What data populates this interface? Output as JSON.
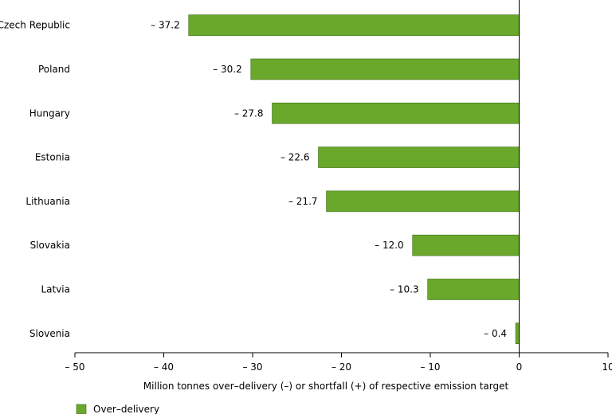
{
  "chart_data": {
    "type": "bar",
    "orientation": "horizontal",
    "categories": [
      "Czech Republic",
      "Poland",
      "Hungary",
      "Estonia",
      "Lithuania",
      "Slovakia",
      "Latvia",
      "Slovenia"
    ],
    "series": [
      {
        "name": "Over–delivery",
        "values": [
          -37.2,
          -30.2,
          -27.8,
          -22.6,
          -21.7,
          -12.0,
          -10.3,
          -0.4
        ],
        "labels": [
          "– 37.2",
          "– 30.2",
          "– 27.8",
          "– 22.6",
          "– 21.7",
          "– 12.0",
          "– 10.3",
          "– 0.4"
        ],
        "color": "#6aa82c"
      }
    ],
    "xlabel": "Million tonnes over–delivery (–) or shortfall (+) of respective emission target",
    "xlim": [
      -50,
      10
    ],
    "xticks": [
      -50,
      -40,
      -30,
      -20,
      -10,
      0,
      10
    ],
    "xtick_labels": [
      "– 50",
      "– 40",
      "– 30",
      "– 20",
      "– 10",
      "0",
      "10"
    ],
    "grid": false,
    "legend_position": "bottom-left",
    "colors": {
      "bar": "#6aa82c",
      "bar_stroke": "#3f6b12",
      "axis": "#000000"
    }
  }
}
